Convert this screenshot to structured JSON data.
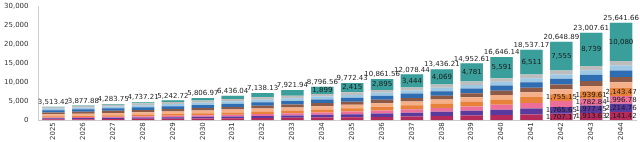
{
  "chart_data": {
    "type": "bar",
    "stacked": true,
    "grid": false,
    "data_labels": true,
    "categories": [
      "2025",
      "2026",
      "2027",
      "2028",
      "2029",
      "2030",
      "2031",
      "2032",
      "2033",
      "2034",
      "2035",
      "2036",
      "2037",
      "2038",
      "2039",
      "2040",
      "2041",
      "2042",
      "2043",
      "2044"
    ],
    "ylim": [
      0,
      30000
    ],
    "yticks": [
      0,
      {
        "value": 5000,
        "label": "5,000"
      },
      {
        "value": 10000,
        "label": "10,000"
      },
      {
        "value": 15000,
        "label": "15,000"
      },
      {
        "value": 20000,
        "label": "20,000"
      },
      {
        "value": 25000,
        "label": "25,000"
      },
      {
        "value": 30000,
        "label": "30,000"
      }
    ],
    "totals": [
      3513.42,
      3877.88,
      4283.75,
      4737.21,
      5242.72,
      5806.97,
      6436.04,
      7138.13,
      7921.94,
      8796.56,
      9772.43,
      10861.56,
      12078.44,
      13436.21,
      14952.61,
      16646.14,
      18537.17,
      20648.89,
      23007.61,
      25641.66
    ],
    "total_labels": [
      "3,513.42",
      "3,877.88",
      "4,283.75",
      "4,737.21",
      "5,242.72",
      "5,806.97",
      "6,436.04",
      "7,138.13",
      "7,921.94",
      "8,796.56",
      "9,772.43",
      "10,861.56",
      "12,078.44",
      "13,436.21",
      "14,952.61",
      "16,646.14",
      "18,537.17",
      "20,648.89",
      "23,007.61",
      "25,641.66"
    ],
    "series": [
      {
        "color": "#b42a5a",
        "values": [
          248.64,
          278.47,
          311.89,
          349.32,
          391.24,
          438.19,
          490.77,
          549.66,
          615.62,
          689.49,
          772.23,
          864.9,
          968.69,
          1084.94,
          1215.13,
          1360.95,
          1524.26,
          1707.17,
          1913.63,
          2141.42
        ],
        "value_labels": [
          null,
          null,
          null,
          null,
          null,
          null,
          null,
          null,
          null,
          null,
          null,
          null,
          null,
          null,
          null,
          null,
          null,
          "1,707.17",
          "1,913.63",
          "2,141.42"
        ]
      },
      {
        "color": "#5b3a9e",
        "values": [
          257.16,
          288.02,
          322.58,
          361.29,
          404.65,
          453.21,
          507.59,
          568.5,
          636.72,
          713.13,
          798.7,
          894.54,
          1001.88,
          1122.1,
          1256.75,
          1407.56,
          1576.47,
          1765.65,
          1977.45,
          2214.76
        ],
        "value_labels": [
          null,
          null,
          null,
          null,
          null,
          null,
          null,
          null,
          null,
          null,
          null,
          null,
          null,
          null,
          null,
          null,
          null,
          "1,765.65",
          "1,977.45",
          "2,214.76"
        ]
      },
      {
        "color": "#ec6f9a",
        "values": [
          231.84,
          259.66,
          290.81,
          325.71,
          364.8,
          408.58,
          457.61,
          512.52,
          574.02,
          642.9,
          720.05,
          806.46,
          903.24,
          1011.63,
          1133.03,
          1268.99,
          1421.27,
          1591.82,
          1782.84,
          1996.78
        ],
        "value_labels": [
          null,
          null,
          null,
          null,
          null,
          null,
          null,
          null,
          null,
          null,
          null,
          null,
          null,
          null,
          null,
          null,
          null,
          null,
          "1,782.84",
          "1,996.78"
        ]
      },
      {
        "color": "#e8823a",
        "values": [
          321.48,
          355.23,
          392.53,
          433.75,
          479.29,
          529.62,
          585.23,
          646.68,
          714.58,
          789.61,
          872.52,
          964.14,
          1065.38,
          1177.24,
          1300.85,
          1437.44,
          1588.37,
          1755.15,
          1939.61,
          2143.47
        ],
        "value_labels": [
          null,
          null,
          null,
          null,
          null,
          null,
          null,
          null,
          null,
          null,
          null,
          null,
          null,
          null,
          null,
          null,
          null,
          "1,755.15",
          "1,939.61",
          "2,143.47"
        ]
      },
      {
        "color": "#f5b08a",
        "values": [
          503,
          541,
          581,
          623,
          664,
          705,
          744,
          783,
          819,
          853,
          881,
          932,
          986,
          1044,
          1106,
          1172,
          1242,
          1318,
          1398,
          1484
        ]
      },
      {
        "color": "#8c5a46",
        "values": [
          479,
          515,
          553,
          593,
          633,
          671,
          709,
          746,
          780,
          812,
          839,
          887,
          939,
          994,
          1053,
          1116,
          1183,
          1255,
          1331,
          1413
        ]
      },
      {
        "color": "#2f6db3",
        "values": [
          575,
          618,
          664,
          712,
          759,
          806,
          851,
          895,
          936,
          975,
          1007,
          1065,
          1127,
          1193,
          1264,
          1339,
          1420,
          1506,
          1597,
          1696
        ]
      },
      {
        "color": "#9cc8e3",
        "values": [
          431,
          464,
          498,
          534,
          569,
          604,
          638,
          672,
          702,
          731,
          755,
          799,
          845,
          895,
          948,
          1004,
          1065,
          1129,
          1198,
          1272
        ]
      },
      {
        "color": "#bdbdbd",
        "values": [
          406.3,
          438.5,
          469.94,
          505.14,
          537.74,
          571.37,
          602.84,
          634.77,
          664.0,
          691.43,
          711.93,
          753.52,
          798.25,
          845.3,
          894.85,
          949.2,
          1005.8,
          1066.1,
          1131.08,
          1200.23
        ]
      },
      {
        "color": "#3a9e9a",
        "values": [
          60,
          120,
          200,
          300,
          440,
          620,
          850,
          1130,
          1480,
          1899,
          2415,
          2895,
          3444,
          4069,
          4781,
          5591,
          6511,
          7555,
          8739,
          10080
        ],
        "value_labels": [
          null,
          null,
          null,
          null,
          null,
          null,
          null,
          null,
          null,
          "1,899",
          "2,415",
          "2,895",
          "3,444",
          "4,069",
          "4,781",
          "5,591",
          "6,511",
          "7,555",
          "8,739",
          "10,080"
        ]
      }
    ]
  }
}
